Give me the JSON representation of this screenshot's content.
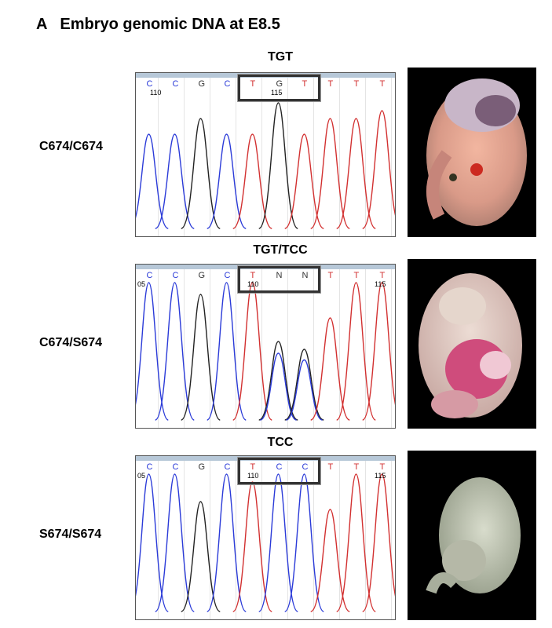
{
  "figure": {
    "panel_letter": "A",
    "panel_title": "Embryo genomic DNA at E8.5"
  },
  "rows": [
    {
      "genotype": "C674/C674",
      "codon": "TGT",
      "bases": [
        {
          "b": "C",
          "color": "#2a3ad8"
        },
        {
          "b": "C",
          "color": "#2a3ad8"
        },
        {
          "b": "G",
          "color": "#333"
        },
        {
          "b": "C",
          "color": "#2a3ad8"
        },
        {
          "b": "T",
          "color": "#d23030"
        },
        {
          "b": "G",
          "color": "#333"
        },
        {
          "b": "T",
          "color": "#d23030"
        },
        {
          "b": "T",
          "color": "#d23030"
        },
        {
          "b": "T",
          "color": "#d23030"
        },
        {
          "b": "T",
          "color": "#d23030"
        }
      ],
      "pos_labels": [
        "110",
        "115"
      ],
      "embryo_color": "pink"
    },
    {
      "genotype": "C674/S674",
      "codon": "TGT/TCC",
      "bases": [
        {
          "b": "C",
          "color": "#2a3ad8"
        },
        {
          "b": "C",
          "color": "#2a3ad8"
        },
        {
          "b": "G",
          "color": "#333"
        },
        {
          "b": "C",
          "color": "#2a3ad8"
        },
        {
          "b": "T",
          "color": "#d23030"
        },
        {
          "b": "N",
          "color": "#333"
        },
        {
          "b": "N",
          "color": "#333"
        },
        {
          "b": "T",
          "color": "#d23030"
        },
        {
          "b": "T",
          "color": "#d23030"
        },
        {
          "b": "T",
          "color": "#d23030"
        }
      ],
      "pos_labels": [
        "05",
        "110",
        "115"
      ],
      "embryo_color": "magenta"
    },
    {
      "genotype": "S674/S674",
      "codon": "TCC",
      "bases": [
        {
          "b": "C",
          "color": "#2a3ad8"
        },
        {
          "b": "C",
          "color": "#2a3ad8"
        },
        {
          "b": "G",
          "color": "#333"
        },
        {
          "b": "C",
          "color": "#2a3ad8"
        },
        {
          "b": "T",
          "color": "#d23030"
        },
        {
          "b": "C",
          "color": "#2a3ad8"
        },
        {
          "b": "C",
          "color": "#2a3ad8"
        },
        {
          "b": "T",
          "color": "#d23030"
        },
        {
          "b": "T",
          "color": "#d23030"
        },
        {
          "b": "T",
          "color": "#d23030"
        }
      ],
      "pos_labels": [
        "05",
        "110",
        "115"
      ],
      "embryo_color": "pale"
    }
  ]
}
